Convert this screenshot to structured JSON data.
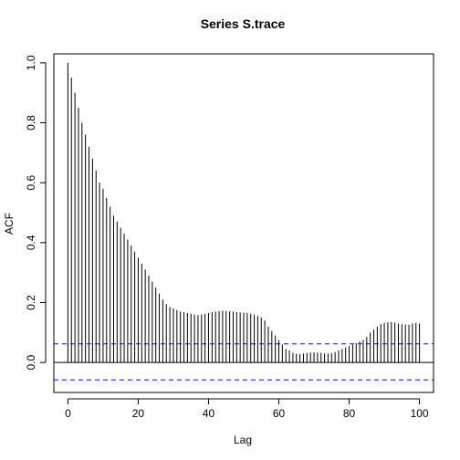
{
  "chart_data": {
    "type": "bar",
    "title": "Series  S.trace",
    "xlabel": "Lag",
    "ylabel": "ACF",
    "xlim": [
      -4,
      104
    ],
    "ylim": [
      -0.1,
      1.03
    ],
    "x_ticks": [
      0,
      20,
      40,
      60,
      80,
      100
    ],
    "y_ticks": [
      0.0,
      0.2,
      0.4,
      0.6,
      0.8,
      1.0
    ],
    "x_tick_labels": [
      "0",
      "20",
      "40",
      "60",
      "80",
      "100"
    ],
    "y_tick_labels": [
      "0.0",
      "0.2",
      "0.4",
      "0.6",
      "0.8",
      "1.0"
    ],
    "confidence_limits": [
      0.062,
      -0.058
    ],
    "confidence_line_color": "#0000ff",
    "bar_color": "#000000",
    "lags": [
      0,
      1,
      2,
      3,
      4,
      5,
      6,
      7,
      8,
      9,
      10,
      11,
      12,
      13,
      14,
      15,
      16,
      17,
      18,
      19,
      20,
      21,
      22,
      23,
      24,
      25,
      26,
      27,
      28,
      29,
      30,
      31,
      32,
      33,
      34,
      35,
      36,
      37,
      38,
      39,
      40,
      41,
      42,
      43,
      44,
      45,
      46,
      47,
      48,
      49,
      50,
      51,
      52,
      53,
      54,
      55,
      56,
      57,
      58,
      59,
      60,
      61,
      62,
      63,
      64,
      65,
      66,
      67,
      68,
      69,
      70,
      71,
      72,
      73,
      74,
      75,
      76,
      77,
      78,
      79,
      80,
      81,
      82,
      83,
      84,
      85,
      86,
      87,
      88,
      89,
      90,
      91,
      92,
      93,
      94,
      95,
      96,
      97,
      98,
      99,
      100
    ],
    "values": [
      1.0,
      0.95,
      0.9,
      0.85,
      0.8,
      0.76,
      0.72,
      0.68,
      0.64,
      0.6,
      0.58,
      0.55,
      0.52,
      0.49,
      0.47,
      0.45,
      0.43,
      0.41,
      0.39,
      0.37,
      0.35,
      0.33,
      0.31,
      0.29,
      0.27,
      0.25,
      0.23,
      0.21,
      0.195,
      0.185,
      0.18,
      0.175,
      0.17,
      0.168,
      0.165,
      0.163,
      0.16,
      0.158,
      0.16,
      0.163,
      0.165,
      0.168,
      0.17,
      0.172,
      0.173,
      0.172,
      0.171,
      0.17,
      0.168,
      0.167,
      0.166,
      0.165,
      0.163,
      0.16,
      0.155,
      0.15,
      0.14,
      0.12,
      0.105,
      0.09,
      0.075,
      0.06,
      0.045,
      0.04,
      0.032,
      0.03,
      0.028,
      0.03,
      0.032,
      0.033,
      0.034,
      0.033,
      0.032,
      0.03,
      0.03,
      0.032,
      0.035,
      0.04,
      0.045,
      0.05,
      0.055,
      0.06,
      0.065,
      0.07,
      0.075,
      0.085,
      0.1,
      0.11,
      0.12,
      0.128,
      0.132,
      0.134,
      0.135,
      0.133,
      0.13,
      0.128,
      0.127,
      0.126,
      0.13,
      0.132,
      0.13
    ]
  }
}
